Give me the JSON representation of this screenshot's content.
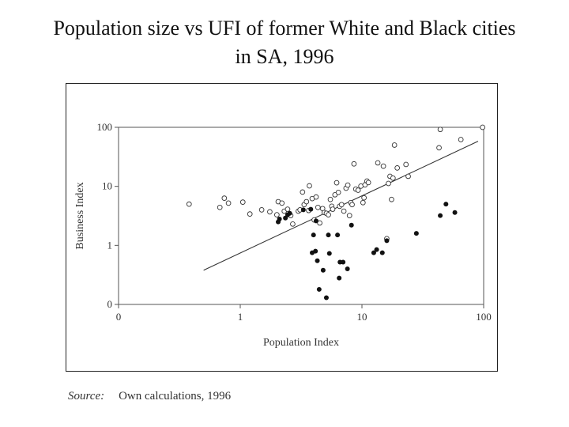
{
  "title_line1": "Population size vs UFI of former White and Black cities",
  "title_line2": "in SA, 1996",
  "source_label": "Source:",
  "source_text": "Own calculations, 1996",
  "chart_data": {
    "type": "scatter",
    "title": "Population size vs UFI of former White and Black cities in SA, 1996",
    "xlabel": "Population Index",
    "ylabel": "Business Index",
    "x_scale": "log",
    "y_scale": "log",
    "xlim": [
      0.1,
      100
    ],
    "ylim": [
      0.1,
      100
    ],
    "x_ticks": [
      {
        "value": 0.1,
        "label": "0"
      },
      {
        "value": 1,
        "label": "1"
      },
      {
        "value": 10,
        "label": "10"
      },
      {
        "value": 100,
        "label": "100"
      }
    ],
    "y_ticks": [
      {
        "value": 0.1,
        "label": "0"
      },
      {
        "value": 1,
        "label": "1"
      },
      {
        "value": 10,
        "label": "10"
      },
      {
        "value": 100,
        "label": "100"
      }
    ],
    "grid": false,
    "colors": {
      "open": "#333333",
      "filled": "#111111",
      "line": "#333333"
    },
    "series": [
      {
        "marker": "open",
        "points": [
          [
            0.38,
            5.0
          ],
          [
            0.68,
            4.4
          ],
          [
            0.74,
            6.3
          ],
          [
            0.8,
            5.2
          ],
          [
            1.05,
            5.4
          ],
          [
            1.2,
            3.4
          ],
          [
            1.5,
            4.0
          ],
          [
            1.75,
            3.7
          ],
          [
            2.0,
            3.3
          ],
          [
            2.05,
            5.5
          ],
          [
            2.2,
            5.2
          ],
          [
            2.3,
            3.8
          ],
          [
            2.45,
            4.1
          ],
          [
            2.6,
            3.2
          ],
          [
            2.7,
            2.3
          ],
          [
            3.0,
            3.8
          ],
          [
            3.1,
            4.0
          ],
          [
            3.25,
            8.0
          ],
          [
            3.35,
            4.9
          ],
          [
            3.5,
            5.5
          ],
          [
            3.65,
            3.9
          ],
          [
            3.7,
            10.2
          ],
          [
            3.9,
            6.2
          ],
          [
            4.05,
            2.7
          ],
          [
            4.2,
            6.6
          ],
          [
            4.35,
            4.4
          ],
          [
            4.5,
            2.4
          ],
          [
            4.75,
            4.2
          ],
          [
            4.9,
            3.6
          ],
          [
            5.1,
            3.5
          ],
          [
            5.3,
            3.3
          ],
          [
            5.5,
            6.0
          ],
          [
            5.65,
            4.6
          ],
          [
            5.75,
            4.1
          ],
          [
            6.0,
            7.2
          ],
          [
            6.2,
            11.5
          ],
          [
            6.4,
            7.9
          ],
          [
            6.55,
            4.6
          ],
          [
            6.8,
            4.9
          ],
          [
            7.1,
            3.8
          ],
          [
            7.4,
            9.3
          ],
          [
            7.65,
            10.5
          ],
          [
            7.9,
            3.2
          ],
          [
            8.1,
            5.3
          ],
          [
            8.3,
            4.9
          ],
          [
            8.6,
            24.0
          ],
          [
            8.9,
            9.0
          ],
          [
            9.3,
            8.6
          ],
          [
            9.8,
            10.1
          ],
          [
            10.2,
            5.3
          ],
          [
            10.4,
            6.4
          ],
          [
            10.6,
            10.6
          ],
          [
            11.0,
            12.3
          ],
          [
            11.3,
            11.6
          ],
          [
            13.5,
            25.0
          ],
          [
            15.0,
            22.0
          ],
          [
            16.0,
            1.3
          ],
          [
            16.5,
            11.2
          ],
          [
            17.0,
            14.8
          ],
          [
            17.5,
            6.0
          ],
          [
            18.0,
            13.8
          ],
          [
            18.5,
            50.0
          ],
          [
            19.5,
            20.5
          ],
          [
            23.0,
            23.5
          ],
          [
            24.0,
            14.8
          ],
          [
            43.0,
            45.0
          ],
          [
            44.0,
            92.0
          ],
          [
            65.0,
            62.0
          ],
          [
            98.0,
            100.0
          ]
        ]
      },
      {
        "marker": "filled",
        "points": [
          [
            2.05,
            2.5
          ],
          [
            2.1,
            2.8
          ],
          [
            2.35,
            2.9
          ],
          [
            2.45,
            3.3
          ],
          [
            2.55,
            3.5
          ],
          [
            3.3,
            4.0
          ],
          [
            3.8,
            4.1
          ],
          [
            3.9,
            0.75
          ],
          [
            4.0,
            1.5
          ],
          [
            4.15,
            0.8
          ],
          [
            4.2,
            2.6
          ],
          [
            4.3,
            0.55
          ],
          [
            4.45,
            0.18
          ],
          [
            4.8,
            0.38
          ],
          [
            5.1,
            0.13
          ],
          [
            5.3,
            1.5
          ],
          [
            5.4,
            0.73
          ],
          [
            6.3,
            1.5
          ],
          [
            6.5,
            0.28
          ],
          [
            6.6,
            0.52
          ],
          [
            7.0,
            0.52
          ],
          [
            7.6,
            0.4
          ],
          [
            8.2,
            2.2
          ],
          [
            12.5,
            0.75
          ],
          [
            13.2,
            0.85
          ],
          [
            14.7,
            0.75
          ],
          [
            16.0,
            1.2
          ],
          [
            28.0,
            1.6
          ],
          [
            44.0,
            3.2
          ],
          [
            49.0,
            5.0
          ],
          [
            58.0,
            3.6
          ]
        ]
      }
    ],
    "trend_line": {
      "x": [
        0.5,
        90
      ],
      "y": [
        0.38,
        58
      ]
    }
  }
}
